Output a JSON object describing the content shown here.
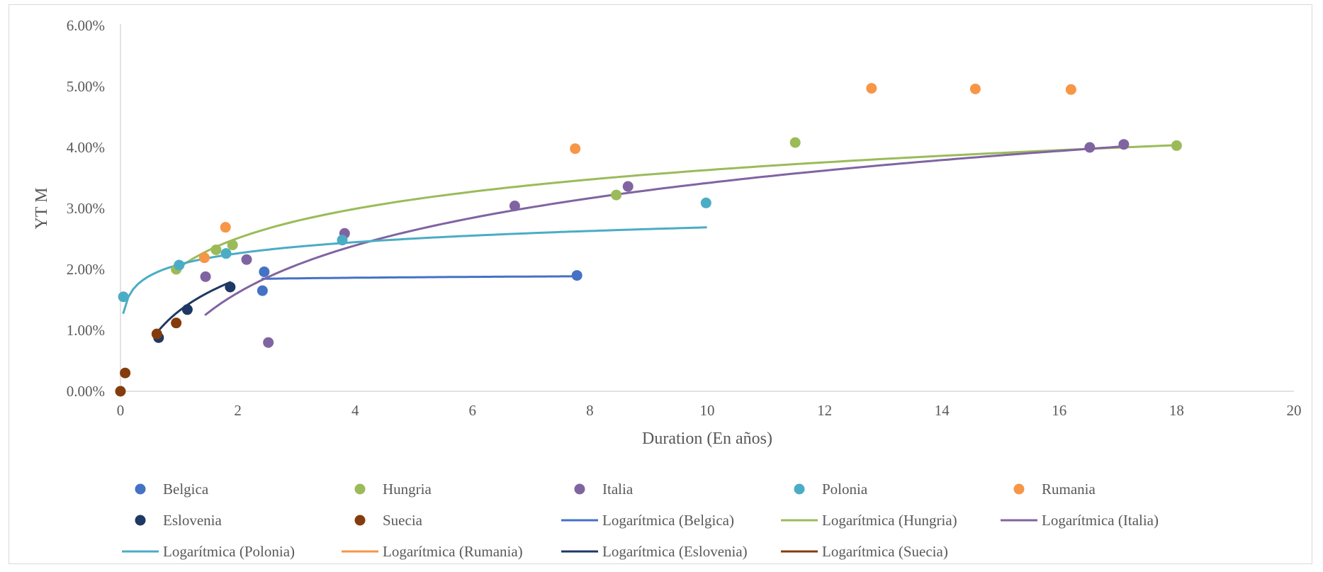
{
  "chart_data": {
    "type": "scatter",
    "xlabel": "Duration (En años)",
    "ylabel": "YT M",
    "xlim": [
      0,
      20
    ],
    "ylim": [
      0,
      0.06
    ],
    "x_ticks": [
      "0",
      "2",
      "4",
      "6",
      "8",
      "10",
      "12",
      "14",
      "16",
      "18",
      "20"
    ],
    "y_ticks": [
      "0.00%",
      "1.00%",
      "2.00%",
      "3.00%",
      "4.00%",
      "5.00%",
      "6.00%"
    ],
    "grid": false,
    "legend_position": "bottom",
    "series": [
      {
        "name": "Belgica",
        "color": "#4472C4",
        "x": [
          2.45,
          2.42,
          7.78
        ],
        "y": [
          0.0196,
          0.0165,
          0.019
        ]
      },
      {
        "name": "Hungria",
        "color": "#9BBB59",
        "x": [
          0.95,
          1.63,
          1.91,
          8.45,
          11.5,
          18.0
        ],
        "y": [
          0.02,
          0.0232,
          0.024,
          0.0322,
          0.0408,
          0.0403
        ]
      },
      {
        "name": "Italia",
        "color": "#8064A2",
        "x": [
          1.45,
          2.15,
          2.52,
          3.82,
          6.72,
          8.65,
          16.52,
          17.1
        ],
        "y": [
          0.0188,
          0.0216,
          0.008,
          0.0259,
          0.0304,
          0.0336,
          0.04,
          0.0405
        ]
      },
      {
        "name": "Polonia",
        "color": "#4BACC6",
        "x": [
          0.05,
          1.0,
          1.8,
          3.78,
          9.98
        ],
        "y": [
          0.0155,
          0.0207,
          0.0226,
          0.0248,
          0.0309
        ]
      },
      {
        "name": "Rumania",
        "color": "#F79646",
        "x": [
          1.43,
          1.79,
          7.75,
          12.8,
          14.57,
          16.2
        ],
        "y": [
          0.0219,
          0.0269,
          0.0398,
          0.0497,
          0.0496,
          0.0495
        ]
      },
      {
        "name": "Eslovenia",
        "color": "#1F3864",
        "x": [
          0.65,
          1.14,
          1.87
        ],
        "y": [
          0.0088,
          0.0134,
          0.0171
        ]
      },
      {
        "name": "Suecia",
        "color": "#843C0C",
        "x": [
          0.0,
          0.08,
          0.62,
          0.95
        ],
        "y": [
          0.0,
          0.003,
          0.0094,
          0.0112
        ]
      }
    ],
    "trendlines": [
      {
        "name": "Logarítmica (Belgica)",
        "color": "#4472C4",
        "a": 0.01814,
        "b": 0.000349,
        "x_from": 2.42,
        "x_to": 7.78
      },
      {
        "name": "Logarítmica (Hungria)",
        "color": "#9BBB59",
        "a": 0.0203,
        "b": 0.006943,
        "x_from": 0.95,
        "x_to": 18.0
      },
      {
        "name": "Logarítmica (Italia)",
        "color": "#8064A2",
        "a": 0.00841,
        "b": 0.011184,
        "x_from": 1.45,
        "x_to": 17.1
      },
      {
        "name": "Logarítmica (Polonia)",
        "color": "#4BACC6",
        "a": 0.02079,
        "b": 0.002647,
        "x_from": 0.05,
        "x_to": 9.98
      },
      {
        "name": "Logarítmica (Rumania)",
        "color": "#F79646",
        "a": null,
        "b": null,
        "x_from": null,
        "x_to": null
      },
      {
        "name": "Logarítmica (Eslovenia)",
        "color": "#1F3864",
        "a": 0.01318,
        "b": 0.00751,
        "x_from": 0.65,
        "x_to": 1.87
      },
      {
        "name": "Logarítmica (Suecia)",
        "color": "#843C0C",
        "a": null,
        "b": null,
        "x_from": null,
        "x_to": null
      }
    ]
  }
}
